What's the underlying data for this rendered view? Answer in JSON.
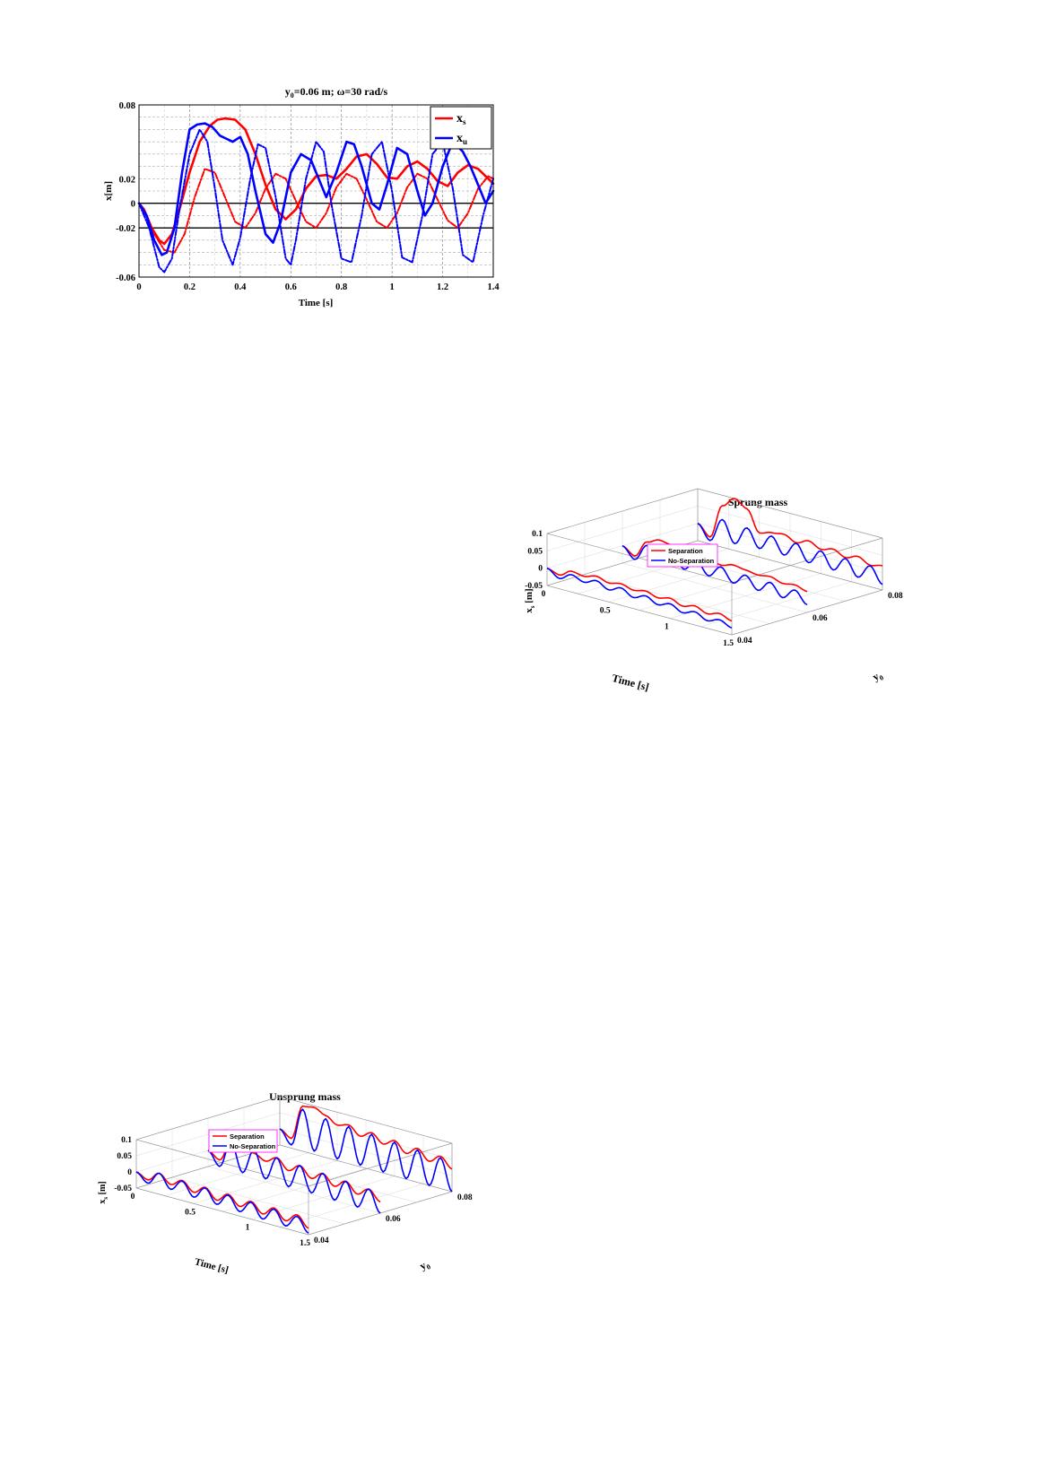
{
  "chart_data": [
    {
      "type": "line",
      "title_prefix": "y",
      "title_sub": "0",
      "title_rest": "=0.06 m; ω=30 rad/s",
      "xlabel": "Time [s]",
      "ylabel": "x[m]",
      "xlim": [
        0,
        1.4
      ],
      "ylim": [
        -0.06,
        0.08
      ],
      "xticks": [
        "0",
        "0.2",
        "0.4",
        "0.6",
        "0.8",
        "1",
        "1.2",
        "1.4"
      ],
      "yticks": [
        "-0.06",
        "-0.02",
        "0",
        "0.02",
        "0.08"
      ],
      "grid": true,
      "legend": [
        {
          "main": "x",
          "sub": "s",
          "color": "#ff0000"
        },
        {
          "main": "x",
          "sub": "u",
          "color": "#0000ff"
        }
      ],
      "legend_position": "top-right",
      "series": [
        {
          "legend": "x_s",
          "color": "#ff0000",
          "dash": "solid",
          "x": [
            0,
            0.02,
            0.05,
            0.08,
            0.1,
            0.13,
            0.16,
            0.2,
            0.24,
            0.28,
            0.31,
            0.34,
            0.38,
            0.42,
            0.46,
            0.5,
            0.54,
            0.58,
            0.62,
            0.66,
            0.7,
            0.74,
            0.78,
            0.82,
            0.86,
            0.9,
            0.94,
            0.98,
            1.02,
            1.06,
            1.1,
            1.14,
            1.18,
            1.22,
            1.26,
            1.3,
            1.34,
            1.38,
            1.4
          ],
          "y": [
            0,
            -0.005,
            -0.02,
            -0.03,
            -0.033,
            -0.025,
            -0.005,
            0.025,
            0.05,
            0.063,
            0.068,
            0.069,
            0.068,
            0.06,
            0.04,
            0.015,
            -0.005,
            -0.013,
            -0.005,
            0.012,
            0.022,
            0.023,
            0.02,
            0.028,
            0.038,
            0.04,
            0.032,
            0.021,
            0.02,
            0.03,
            0.034,
            0.028,
            0.018,
            0.014,
            0.025,
            0.031,
            0.028,
            0.02,
            0.016
          ]
        },
        {
          "legend": "",
          "color": "#ff0000",
          "dash": "dashdot",
          "x": [
            0,
            0.03,
            0.06,
            0.1,
            0.14,
            0.18,
            0.22,
            0.26,
            0.3,
            0.34,
            0.38,
            0.42,
            0.46,
            0.5,
            0.54,
            0.58,
            0.62,
            0.66,
            0.7,
            0.74,
            0.78,
            0.82,
            0.86,
            0.9,
            0.94,
            0.98,
            1.02,
            1.06,
            1.1,
            1.14,
            1.18,
            1.22,
            1.26,
            1.3,
            1.34,
            1.38,
            1.4
          ],
          "y": [
            0,
            -0.01,
            -0.025,
            -0.038,
            -0.04,
            -0.025,
            0.005,
            0.028,
            0.025,
            0.005,
            -0.015,
            -0.02,
            -0.008,
            0.012,
            0.024,
            0.02,
            0.002,
            -0.015,
            -0.02,
            -0.008,
            0.013,
            0.024,
            0.02,
            0.003,
            -0.015,
            -0.02,
            -0.008,
            0.013,
            0.024,
            0.02,
            0.003,
            -0.014,
            -0.02,
            -0.008,
            0.012,
            0.022,
            0.02
          ]
        },
        {
          "legend": "x_u",
          "color": "#0000ff",
          "dash": "solid",
          "x": [
            0,
            0.03,
            0.06,
            0.09,
            0.11,
            0.14,
            0.17,
            0.2,
            0.23,
            0.26,
            0.29,
            0.32,
            0.34,
            0.37,
            0.4,
            0.43,
            0.46,
            0.5,
            0.53,
            0.56,
            0.6,
            0.64,
            0.68,
            0.71,
            0.74,
            0.78,
            0.82,
            0.85,
            0.88,
            0.92,
            0.95,
            0.98,
            1.02,
            1.06,
            1.1,
            1.13,
            1.16,
            1.2,
            1.24,
            1.28,
            1.31,
            1.34,
            1.37,
            1.4
          ],
          "y": [
            0,
            -0.01,
            -0.03,
            -0.042,
            -0.04,
            -0.02,
            0.025,
            0.06,
            0.064,
            0.065,
            0.062,
            0.055,
            0.053,
            0.05,
            0.054,
            0.04,
            0.01,
            -0.025,
            -0.032,
            -0.015,
            0.025,
            0.04,
            0.035,
            0.02,
            0.005,
            0.025,
            0.05,
            0.048,
            0.03,
            0.0,
            -0.005,
            0.015,
            0.045,
            0.04,
            0.01,
            -0.01,
            0.0,
            0.03,
            0.05,
            0.042,
            0.03,
            0.015,
            0.0,
            0.01
          ]
        },
        {
          "legend": "",
          "color": "#0000ff",
          "dash": "dashdot",
          "x": [
            0,
            0.04,
            0.08,
            0.1,
            0.13,
            0.16,
            0.2,
            0.24,
            0.27,
            0.3,
            0.33,
            0.37,
            0.4,
            0.44,
            0.47,
            0.5,
            0.54,
            0.58,
            0.6,
            0.62,
            0.66,
            0.7,
            0.73,
            0.76,
            0.8,
            0.84,
            0.88,
            0.92,
            0.96,
            1.0,
            1.04,
            1.08,
            1.12,
            1.16,
            1.2,
            1.24,
            1.28,
            1.32,
            1.36,
            1.4
          ],
          "y": [
            0,
            -0.02,
            -0.052,
            -0.056,
            -0.045,
            -0.005,
            0.04,
            0.06,
            0.05,
            0.012,
            -0.03,
            -0.05,
            -0.028,
            0.02,
            0.048,
            0.045,
            0.005,
            -0.045,
            -0.05,
            -0.03,
            0.02,
            0.05,
            0.042,
            0.0,
            -0.045,
            -0.048,
            -0.01,
            0.04,
            0.05,
            0.01,
            -0.044,
            -0.048,
            -0.01,
            0.04,
            0.05,
            0.012,
            -0.042,
            -0.048,
            -0.01,
            0.02
          ]
        }
      ]
    },
    {
      "type": "line",
      "view": "3d-waterfall",
      "title": "Sprung mass",
      "xlabel": "Time [s]",
      "ylabel_main": "y",
      "ylabel_sub": "0",
      "zlabel_main": "x",
      "zlabel_sub": "s",
      "zlabel_unit": "[m]",
      "xlim": [
        0,
        1.5
      ],
      "ylim": [
        0.04,
        0.08
      ],
      "zlim": [
        -0.05,
        0.1
      ],
      "xticks": [
        "0",
        "0.5",
        "1",
        "1.5"
      ],
      "yticks": [
        "0.04",
        "0.06",
        "0.08"
      ],
      "zticks": [
        "-0.05",
        "0",
        "0.05",
        "0.1"
      ],
      "legend": [
        {
          "label": "Separation",
          "color": "#ff0000"
        },
        {
          "label": "No-Separation",
          "color": "#0000ff"
        }
      ],
      "legend_position": "top-left",
      "series": [
        {
          "name": "Separation",
          "color": "#ff0000",
          "y0": 0.04,
          "t": [
            0,
            0.1,
            0.2,
            0.3,
            0.4,
            0.5,
            0.6,
            0.7,
            0.8,
            0.9,
            1.0,
            1.1,
            1.2,
            1.3,
            1.4,
            1.5
          ],
          "z": [
            0,
            -0.01,
            0.01,
            0.005,
            0.015,
            0.005,
            0.012,
            0.003,
            0.01,
            0.0,
            0.008,
            -0.005,
            0.005,
            -0.008,
            0.002,
            -0.01
          ]
        },
        {
          "name": "No-Separation",
          "color": "#0000ff",
          "y0": 0.04,
          "t": [
            0,
            0.1,
            0.2,
            0.3,
            0.4,
            0.5,
            0.6,
            0.7,
            0.8,
            0.9,
            1.0,
            1.1,
            1.2,
            1.3,
            1.4,
            1.5
          ],
          "z": [
            0,
            -0.02,
            0.0,
            -0.012,
            0.002,
            -0.015,
            0.0,
            -0.018,
            -0.004,
            -0.02,
            -0.008,
            -0.024,
            -0.012,
            -0.028,
            -0.016,
            -0.03
          ]
        },
        {
          "name": "Separation",
          "color": "#ff0000",
          "y0": 0.06,
          "t": [
            0,
            0.1,
            0.2,
            0.3,
            0.4,
            0.5,
            0.6,
            0.7,
            0.8,
            0.9,
            1.0,
            1.1,
            1.2,
            1.3,
            1.4,
            1.5
          ],
          "z": [
            0,
            -0.02,
            0.03,
            0.045,
            0.04,
            0.01,
            0.02,
            0.03,
            0.02,
            0.03,
            0.025,
            0.02,
            0.025,
            0.015,
            0.02,
            0.01
          ]
        },
        {
          "name": "No-Separation",
          "color": "#0000ff",
          "y0": 0.06,
          "t": [
            0,
            0.1,
            0.2,
            0.3,
            0.4,
            0.5,
            0.6,
            0.7,
            0.8,
            0.9,
            1.0,
            1.1,
            1.2,
            1.3,
            1.4,
            1.5
          ],
          "z": [
            0,
            -0.03,
            0.02,
            -0.02,
            0.02,
            -0.02,
            0.015,
            -0.02,
            0.015,
            -0.022,
            0.01,
            -0.024,
            0.008,
            -0.026,
            0.005,
            -0.028
          ]
        },
        {
          "name": "Separation",
          "color": "#ff0000",
          "y0": 0.08,
          "t": [
            0,
            0.1,
            0.2,
            0.3,
            0.4,
            0.5,
            0.6,
            0.7,
            0.8,
            0.9,
            1.0,
            1.1,
            1.2,
            1.3,
            1.4,
            1.5
          ],
          "z": [
            0,
            -0.03,
            0.07,
            0.1,
            0.08,
            0.02,
            0.03,
            0.035,
            0.02,
            0.035,
            0.02,
            0.03,
            0.015,
            0.028,
            0.012,
            0.02
          ]
        },
        {
          "name": "No-Separation",
          "color": "#0000ff",
          "y0": 0.08,
          "t": [
            0,
            0.1,
            0.2,
            0.3,
            0.4,
            0.5,
            0.6,
            0.7,
            0.8,
            0.9,
            1.0,
            1.1,
            1.2,
            1.3,
            1.4,
            1.5
          ],
          "z": [
            0,
            -0.04,
            0.03,
            -0.03,
            0.025,
            -0.025,
            0.02,
            -0.025,
            0.018,
            -0.028,
            0.015,
            -0.03,
            0.012,
            -0.032,
            0.01,
            -0.034
          ]
        }
      ]
    },
    {
      "type": "line",
      "view": "3d-waterfall",
      "title": "Unsprung mass",
      "xlabel": "Time [s]",
      "ylabel_main": "y",
      "ylabel_sub": "0",
      "zlabel_main": "x",
      "zlabel_sub": "s",
      "zlabel_unit": "[m]",
      "xlim": [
        0,
        1.5
      ],
      "ylim": [
        0.04,
        0.08
      ],
      "zlim": [
        -0.05,
        0.1
      ],
      "xticks": [
        "0",
        "0.5",
        "1",
        "1.5"
      ],
      "yticks": [
        "0.04",
        "0.06",
        "0.08"
      ],
      "zticks": [
        "-0.05",
        "0",
        "0.05",
        "0.1"
      ],
      "legend": [
        {
          "label": "Separation",
          "color": "#ff0000"
        },
        {
          "label": "No-Separation",
          "color": "#0000ff"
        }
      ],
      "legend_position": "top-left",
      "series": [
        {
          "name": "Separation",
          "color": "#ff0000",
          "y0": 0.04,
          "t": [
            0,
            0.1,
            0.2,
            0.3,
            0.4,
            0.5,
            0.6,
            0.7,
            0.8,
            0.9,
            1.0,
            1.1,
            1.2,
            1.3,
            1.4,
            1.5
          ],
          "z": [
            0,
            -0.015,
            0.015,
            -0.01,
            0.012,
            -0.015,
            0.01,
            -0.02,
            0.008,
            -0.02,
            0.005,
            -0.024,
            0.004,
            -0.026,
            0.002,
            -0.03
          ]
        },
        {
          "name": "No-Separation",
          "color": "#0000ff",
          "y0": 0.04,
          "t": [
            0,
            0.1,
            0.2,
            0.3,
            0.4,
            0.5,
            0.6,
            0.7,
            0.8,
            0.9,
            1.0,
            1.1,
            1.2,
            1.3,
            1.4,
            1.5
          ],
          "z": [
            0,
            -0.025,
            0.015,
            -0.025,
            0.01,
            -0.03,
            0.008,
            -0.033,
            0.005,
            -0.036,
            0.002,
            -0.04,
            0.0,
            -0.042,
            -0.003,
            -0.045
          ]
        },
        {
          "name": "Separation",
          "color": "#ff0000",
          "y0": 0.06,
          "t": [
            0,
            0.1,
            0.2,
            0.3,
            0.4,
            0.5,
            0.6,
            0.7,
            0.8,
            0.9,
            1.0,
            1.1,
            1.2,
            1.3,
            1.4,
            1.5
          ],
          "z": [
            0,
            -0.02,
            0.045,
            0.04,
            0.03,
            0.015,
            0.035,
            0.005,
            0.03,
            0.0,
            0.025,
            -0.005,
            0.02,
            -0.01,
            0.015,
            -0.015
          ]
        },
        {
          "name": "No-Separation",
          "color": "#0000ff",
          "y0": 0.06,
          "t": [
            0,
            0.1,
            0.2,
            0.3,
            0.4,
            0.5,
            0.6,
            0.7,
            0.8,
            0.9,
            1.0,
            1.1,
            1.2,
            1.3,
            1.4,
            1.5
          ],
          "z": [
            0,
            -0.04,
            0.045,
            -0.04,
            0.04,
            -0.04,
            0.035,
            -0.045,
            0.03,
            -0.045,
            0.025,
            -0.048,
            0.02,
            -0.05,
            0.015,
            -0.05
          ]
        },
        {
          "name": "Separation",
          "color": "#ff0000",
          "y0": 0.08,
          "t": [
            0,
            0.1,
            0.2,
            0.3,
            0.4,
            0.5,
            0.6,
            0.7,
            0.8,
            0.9,
            1.0,
            1.1,
            1.2,
            1.3,
            1.4,
            1.5
          ],
          "z": [
            0,
            -0.02,
            0.09,
            0.095,
            0.08,
            0.06,
            0.07,
            0.045,
            0.065,
            0.04,
            0.06,
            0.03,
            0.055,
            0.025,
            0.05,
            0.02
          ]
        },
        {
          "name": "No-Separation",
          "color": "#0000ff",
          "y0": 0.08,
          "t": [
            0,
            0.1,
            0.2,
            0.3,
            0.4,
            0.5,
            0.6,
            0.7,
            0.8,
            0.9,
            1.0,
            1.1,
            1.2,
            1.3,
            1.4,
            1.5
          ],
          "z": [
            0,
            -0.04,
            0.08,
            -0.04,
            0.07,
            -0.045,
            0.065,
            -0.045,
            0.06,
            -0.047,
            0.055,
            -0.048,
            0.05,
            -0.05,
            0.045,
            -0.05
          ]
        }
      ]
    }
  ]
}
